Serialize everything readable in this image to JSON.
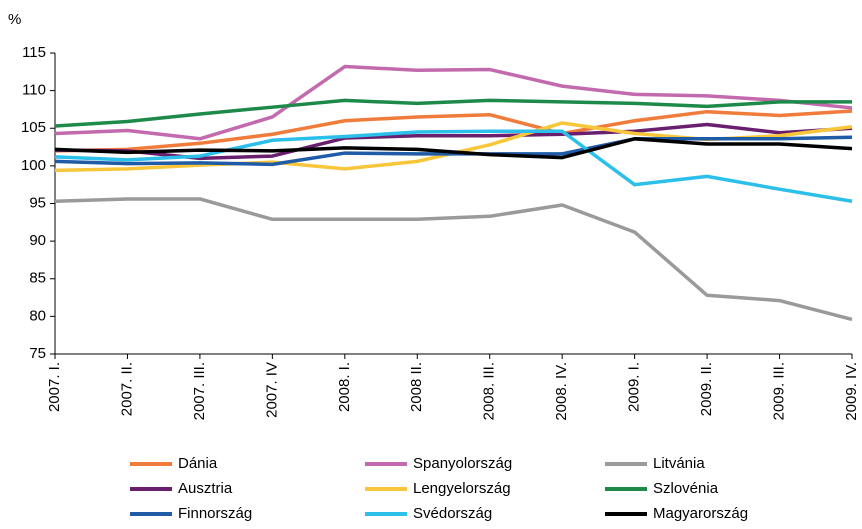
{
  "chart_data": {
    "type": "line",
    "y_label": "%",
    "categories": [
      "2007. I.",
      "2007. II.",
      "2007. III.",
      "2007. IV",
      "2008. I.",
      "2008 II.",
      "2008. III.",
      "2008. IV.",
      "2009. I.",
      "2009. II.",
      "2009. III.",
      "2009. IV."
    ],
    "ylim": [
      75,
      115
    ],
    "yticks": [
      75,
      80,
      85,
      90,
      95,
      100,
      105,
      110,
      115
    ],
    "series": [
      {
        "name": "Dánia",
        "color": "#f07c3c",
        "values": [
          102,
          102.2,
          103,
          104.2,
          106,
          106.5,
          106.8,
          104.3,
          106,
          107.2,
          106.7,
          107.3
        ]
      },
      {
        "name": "Spanyolország",
        "color": "#c36aae",
        "values": [
          104.3,
          104.7,
          103.6,
          106.5,
          113.2,
          112.7,
          112.8,
          110.6,
          109.5,
          109.3,
          108.7,
          107.7
        ]
      },
      {
        "name": "Litvánia",
        "color": "#9a9a9a",
        "values": [
          95.3,
          95.6,
          95.6,
          92.9,
          92.9,
          92.9,
          93.3,
          94.8,
          91.2,
          82.8,
          82.1,
          79.6
        ]
      },
      {
        "name": "Ausztria",
        "color": "#6a1f6e",
        "values": [
          102.1,
          102,
          101,
          101.3,
          103.7,
          104,
          104,
          104.2,
          104.6,
          105.5,
          104.4,
          105
        ]
      },
      {
        "name": "Lengyelország",
        "color": "#f8c63a",
        "values": [
          99.4,
          99.6,
          100.1,
          100.5,
          99.6,
          100.6,
          102.8,
          105.7,
          104.3,
          103.5,
          104,
          105.2
        ]
      },
      {
        "name": "Szlovénia",
        "color": "#1e8a4a",
        "values": [
          105.3,
          105.9,
          106.9,
          107.8,
          108.7,
          108.3,
          108.7,
          108.5,
          108.3,
          107.9,
          108.5,
          108.5
        ]
      },
      {
        "name": "Finnország",
        "color": "#1f5ba6",
        "values": [
          100.6,
          100.3,
          100.4,
          100.2,
          101.7,
          101.6,
          101.6,
          101.6,
          103.6,
          103.6,
          103.6,
          103.8
        ]
      },
      {
        "name": "Svédország",
        "color": "#2bbfea",
        "values": [
          101.2,
          100.8,
          101.3,
          103.4,
          103.9,
          104.5,
          104.6,
          104.6,
          97.5,
          98.6,
          96.9,
          95.3
        ]
      },
      {
        "name": "Magyarország",
        "color": "#000000",
        "values": [
          102.2,
          101.8,
          102.1,
          102,
          102.4,
          102.2,
          101.5,
          101.1,
          103.6,
          102.9,
          102.9,
          102.3
        ]
      }
    ]
  }
}
